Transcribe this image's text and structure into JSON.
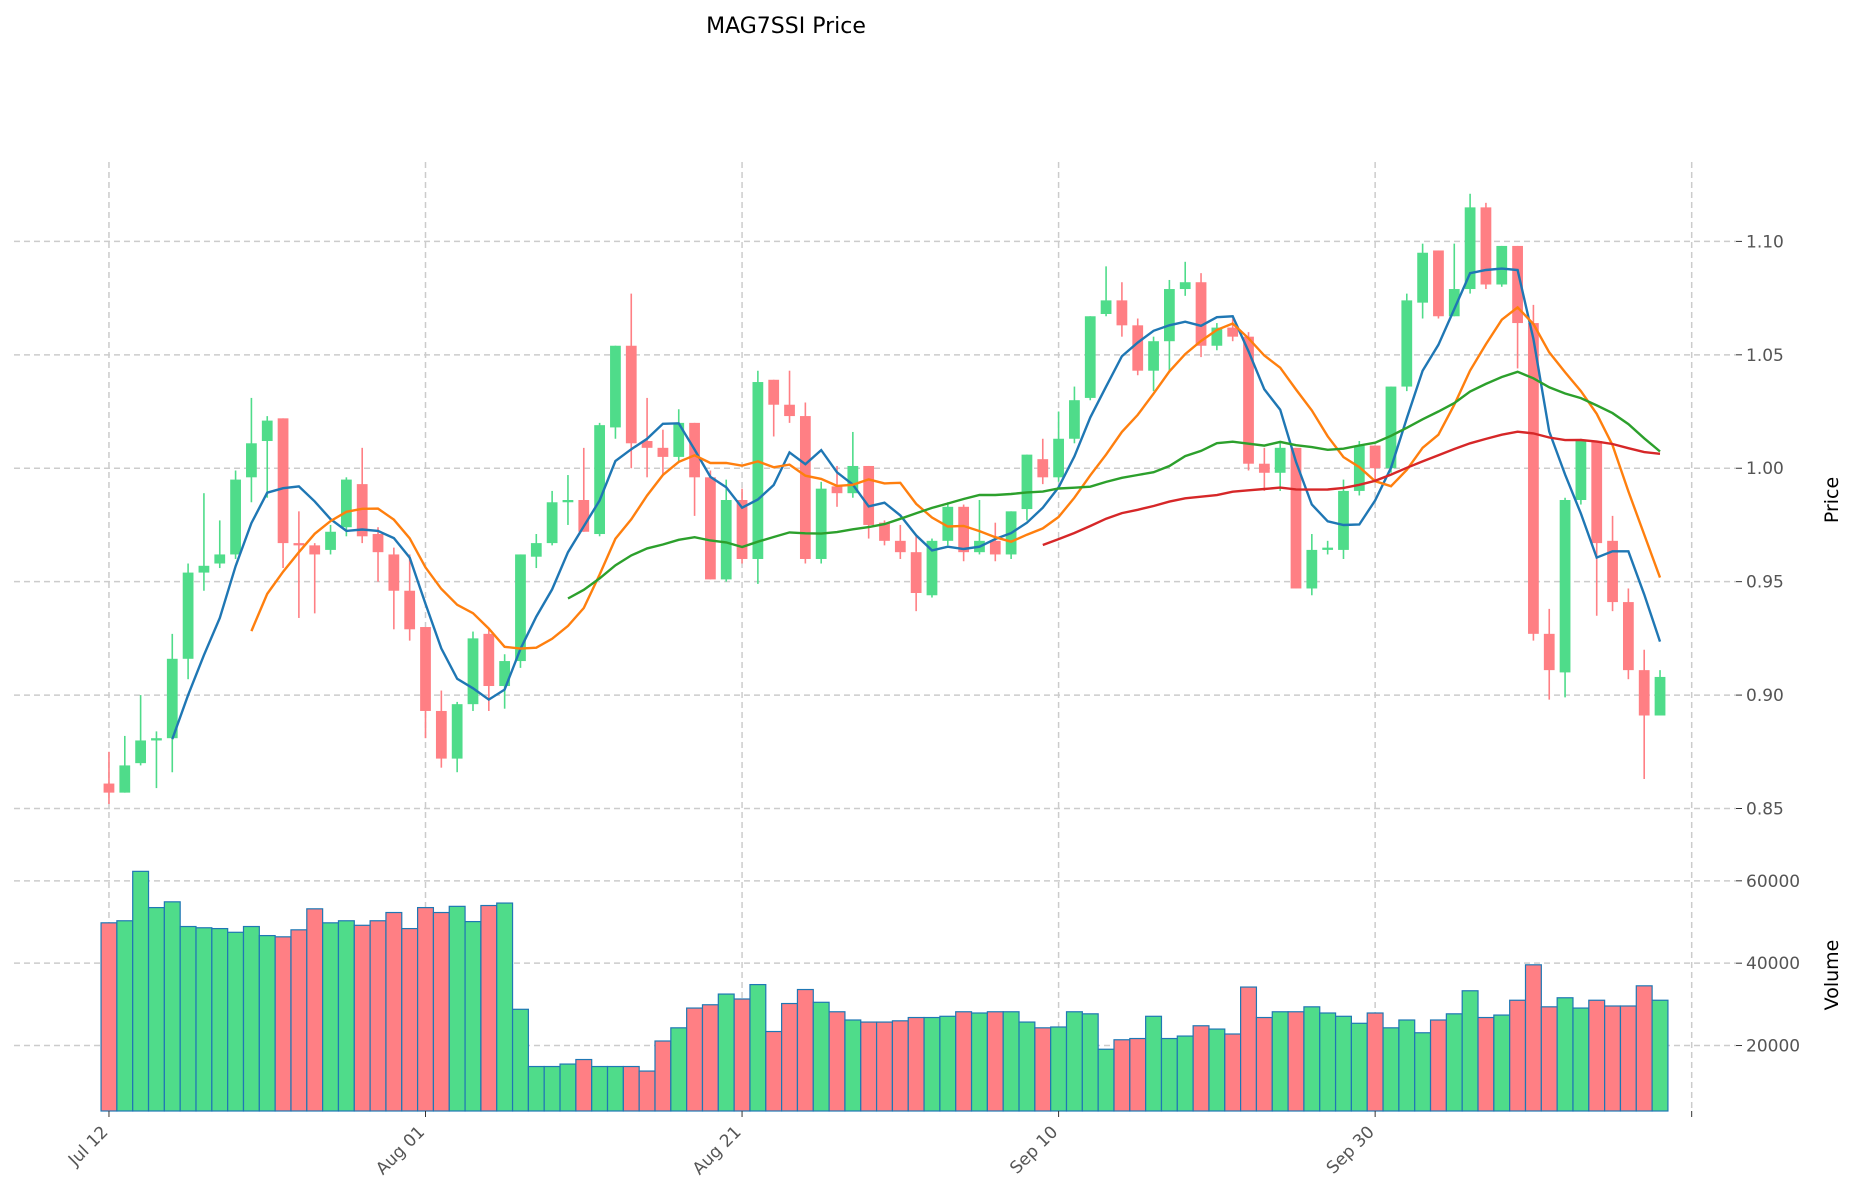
{
  "chart_data": {
    "type": "candlestick",
    "title": "MAG7SSI Price",
    "ylabel_price": "Price",
    "ylabel_volume": "Volume",
    "x_tick_labels": [
      "Jul 12",
      "Aug 01",
      "Aug 21",
      "Sep 10",
      "Sep 30",
      ""
    ],
    "x_tick_indices": [
      0,
      20,
      40,
      60,
      80,
      100
    ],
    "price_ticks": [
      "0.85",
      "0.90",
      "0.95",
      "1.00",
      "1.05",
      "1.10"
    ],
    "price_tick_values": [
      0.85,
      0.9,
      0.95,
      1.0,
      1.05,
      1.1
    ],
    "price_ylim": [
      0.837,
      1.135
    ],
    "volume_ticks": [
      "20000",
      "40000",
      "60000"
    ],
    "volume_tick_values": [
      20000,
      40000,
      60000
    ],
    "volume_ylim": [
      4100,
      67000
    ],
    "xlim": [
      -6,
      102.8
    ],
    "moving_averages": [
      {
        "window": 5,
        "color": "#1f77b4"
      },
      {
        "window": 10,
        "color": "#ff7f0e"
      },
      {
        "window": 30,
        "color": "#2ca02c"
      },
      {
        "window": 60,
        "color": "#d62728"
      }
    ],
    "colors": {
      "up": "#4fdc8a",
      "down": "#ff7f84",
      "volume_edge": "#1f77b4",
      "grid": "#cccccc"
    },
    "open": [
      0.861,
      0.857,
      0.87,
      0.88,
      0.881,
      0.916,
      0.954,
      0.958,
      0.962,
      0.996,
      1.012,
      1.022,
      0.967,
      0.966,
      0.964,
      0.974,
      0.993,
      0.971,
      0.962,
      0.946,
      0.93,
      0.893,
      0.872,
      0.896,
      0.927,
      0.904,
      0.915,
      0.961,
      0.967,
      0.985,
      0.986,
      0.971,
      1.018,
      1.054,
      1.012,
      1.009,
      1.005,
      1.02,
      0.996,
      0.951,
      0.986,
      0.96,
      1.039,
      1.028,
      1.023,
      0.96,
      0.992,
      0.989,
      1.001,
      0.976,
      0.968,
      0.963,
      0.944,
      0.968,
      0.983,
      0.963,
      0.968,
      0.962,
      0.982,
      1.004,
      0.996,
      1.013,
      1.031,
      1.068,
      1.074,
      1.063,
      1.043,
      1.056,
      1.079,
      1.082,
      1.054,
      1.062,
      1.058,
      1.002,
      0.998,
      1.009,
      0.947,
      0.964,
      0.964,
      0.99,
      1.01,
      1.0,
      1.036,
      1.073,
      1.096,
      1.067,
      1.079,
      1.115,
      1.081,
      1.098,
      1.064,
      0.927,
      0.91,
      0.986,
      1.012,
      0.968,
      0.941,
      0.911,
      0.891
    ],
    "high": [
      0.875,
      0.882,
      0.9,
      0.884,
      0.927,
      0.958,
      0.989,
      0.977,
      0.999,
      1.031,
      1.023,
      1.022,
      0.981,
      0.967,
      0.975,
      0.996,
      1.009,
      0.974,
      0.965,
      0.962,
      0.93,
      0.902,
      0.897,
      0.928,
      0.929,
      0.918,
      0.962,
      0.971,
      0.99,
      0.997,
      1.009,
      1.02,
      1.054,
      1.077,
      1.031,
      1.017,
      1.026,
      1.02,
      0.999,
      0.995,
      0.991,
      1.043,
      1.039,
      1.043,
      1.029,
      0.994,
      1.001,
      1.016,
      1.001,
      0.977,
      0.975,
      0.97,
      0.969,
      0.985,
      0.984,
      0.986,
      0.976,
      0.981,
      1.006,
      1.013,
      1.025,
      1.036,
      1.067,
      1.089,
      1.082,
      1.066,
      1.058,
      1.083,
      1.091,
      1.086,
      1.064,
      1.066,
      1.06,
      1.009,
      1.012,
      1.009,
      0.971,
      0.968,
      0.995,
      1.012,
      1.01,
      1.036,
      1.077,
      1.099,
      1.096,
      1.099,
      1.121,
      1.117,
      1.098,
      1.098,
      1.072,
      0.938,
      0.987,
      1.013,
      1.012,
      0.979,
      0.947,
      0.92,
      0.911
    ],
    "low": [
      0.852,
      0.857,
      0.869,
      0.859,
      0.866,
      0.907,
      0.946,
      0.956,
      0.96,
      0.985,
      0.987,
      0.956,
      0.934,
      0.936,
      0.962,
      0.97,
      0.967,
      0.95,
      0.929,
      0.924,
      0.881,
      0.868,
      0.866,
      0.893,
      0.893,
      0.894,
      0.912,
      0.956,
      0.966,
      0.975,
      0.972,
      0.97,
      1.013,
      1.0,
      0.996,
      0.997,
      1.003,
      0.979,
      0.951,
      0.95,
      0.958,
      0.949,
      1.014,
      1.02,
      0.958,
      0.958,
      0.983,
      0.987,
      0.969,
      0.966,
      0.96,
      0.937,
      0.943,
      0.966,
      0.959,
      0.962,
      0.959,
      0.96,
      0.977,
      0.993,
      0.994,
      1.011,
      1.03,
      1.067,
      1.058,
      1.041,
      1.034,
      1.043,
      1.076,
      1.049,
      1.052,
      1.056,
      0.999,
      0.99,
      0.99,
      0.947,
      0.944,
      0.962,
      0.96,
      0.988,
      0.995,
      0.998,
      1.034,
      1.066,
      1.066,
      1.067,
      1.077,
      1.079,
      1.08,
      1.044,
      0.924,
      0.898,
      0.899,
      0.984,
      0.935,
      0.937,
      0.907,
      0.863,
      0.891
    ],
    "close": [
      0.857,
      0.869,
      0.88,
      0.881,
      0.916,
      0.954,
      0.957,
      0.962,
      0.995,
      1.011,
      1.021,
      0.967,
      0.966,
      0.962,
      0.972,
      0.995,
      0.97,
      0.963,
      0.946,
      0.929,
      0.893,
      0.872,
      0.896,
      0.925,
      0.904,
      0.915,
      0.962,
      0.967,
      0.985,
      0.986,
      0.972,
      1.019,
      1.054,
      1.011,
      1.009,
      1.005,
      1.02,
      0.996,
      0.951,
      0.986,
      0.96,
      1.038,
      1.028,
      1.023,
      0.96,
      0.991,
      0.989,
      1.001,
      0.975,
      0.968,
      0.963,
      0.945,
      0.968,
      0.983,
      0.963,
      0.968,
      0.962,
      0.981,
      1.006,
      0.996,
      1.013,
      1.03,
      1.067,
      1.074,
      1.063,
      1.043,
      1.056,
      1.079,
      1.082,
      1.054,
      1.062,
      1.058,
      1.002,
      0.998,
      1.009,
      0.947,
      0.964,
      0.965,
      0.99,
      1.01,
      1.0,
      1.036,
      1.074,
      1.095,
      1.067,
      1.079,
      1.115,
      1.081,
      1.098,
      1.064,
      0.927,
      0.911,
      0.986,
      1.012,
      0.967,
      0.941,
      0.911,
      0.891,
      0.908
    ],
    "volume": [
      49800,
      50300,
      62300,
      53500,
      54900,
      48900,
      48600,
      48400,
      47500,
      48900,
      46700,
      46400,
      48100,
      53200,
      49800,
      50300,
      49200,
      50300,
      52300,
      48400,
      53500,
      52300,
      53800,
      50100,
      54000,
      54600,
      28800,
      14900,
      14900,
      15500,
      16600,
      14900,
      14900,
      14900,
      13800,
      21100,
      24300,
      29100,
      29900,
      32500,
      31300,
      34800,
      23400,
      30200,
      33600,
      30500,
      28200,
      26200,
      25700,
      25700,
      26000,
      26800,
      26800,
      27100,
      28200,
      27900,
      28200,
      28200,
      25700,
      24300,
      24500,
      28200,
      27700,
      19100,
      21400,
      21700,
      27100,
      21700,
      22300,
      24800,
      24000,
      22800,
      34200,
      26800,
      28200,
      28200,
      29400,
      27900,
      27100,
      25400,
      27900,
      24300,
      26200,
      23100,
      26200,
      27700,
      33300,
      26800,
      27400,
      31000,
      39600,
      29400,
      31600,
      29100,
      31000,
      29600,
      29600,
      34500,
      31000
    ]
  }
}
